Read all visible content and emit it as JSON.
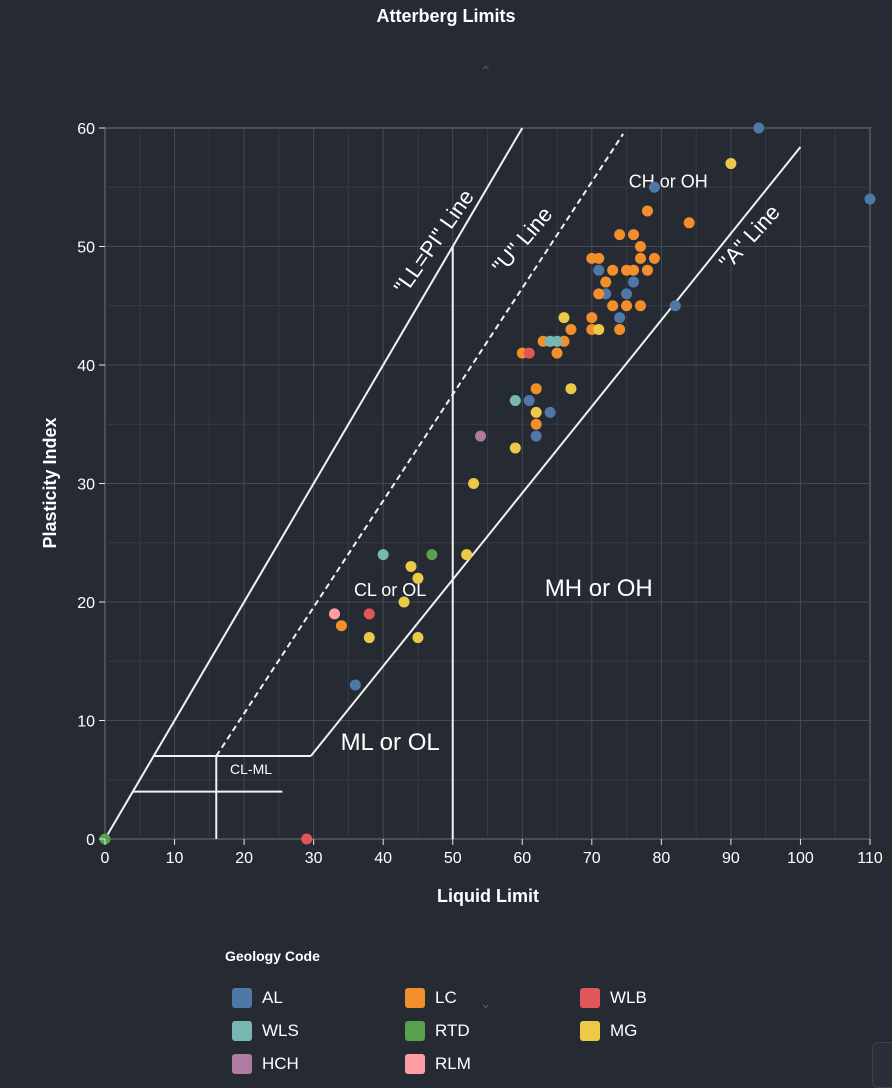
{
  "chart_data": {
    "type": "scatter",
    "title": "Atterberg Limits",
    "xlabel": "Liquid Limit",
    "ylabel": "Plasticity Index",
    "xlim": [
      0,
      110
    ],
    "ylim": [
      0,
      60
    ],
    "xticks": [
      0,
      10,
      20,
      30,
      40,
      50,
      60,
      70,
      80,
      90,
      100,
      110
    ],
    "yticks": [
      0,
      10,
      20,
      30,
      40,
      50,
      60
    ],
    "grid": true,
    "legend_title": "Geology Code",
    "legend_position": "bottom",
    "reference_lines": [
      {
        "name": "LL=PI line",
        "label": "\"LL=PI\" Line",
        "points": [
          [
            0,
            0
          ],
          [
            60,
            60
          ]
        ],
        "style": "solid"
      },
      {
        "name": "U line",
        "label": "\"U\" Line",
        "points": [
          [
            16,
            7
          ],
          [
            74.5,
            59.5
          ]
        ],
        "style": "dashed"
      },
      {
        "name": "A line",
        "label": "\"A\" Line",
        "points": [
          [
            29.6,
            7
          ],
          [
            100,
            58.4
          ]
        ],
        "style": "solid"
      },
      {
        "name": "LL 50 line",
        "label": "",
        "points": [
          [
            50,
            0
          ],
          [
            50,
            50
          ]
        ],
        "style": "solid"
      },
      {
        "name": "LL 16 line",
        "label": "",
        "points": [
          [
            16,
            0
          ],
          [
            16,
            7
          ]
        ],
        "style": "solid"
      },
      {
        "name": "PI 7 line",
        "label": "",
        "points": [
          [
            7,
            7
          ],
          [
            29.6,
            7
          ]
        ],
        "style": "solid"
      },
      {
        "name": "PI 4 line",
        "label": "",
        "points": [
          [
            4,
            4
          ],
          [
            25.5,
            4
          ]
        ],
        "style": "solid"
      }
    ],
    "regions": [
      {
        "label": "CH or OH",
        "x": 81,
        "y": 55
      },
      {
        "label": "CL or OL",
        "x": 41,
        "y": 20.5
      },
      {
        "label": "MH or OH",
        "x": 71,
        "y": 20.5
      },
      {
        "label": "ML or OL",
        "x": 41,
        "y": 7.5
      },
      {
        "label": "CL-ML",
        "x": 21,
        "y": 5.5
      }
    ],
    "series": [
      {
        "name": "AL",
        "color": "#4e79a7",
        "points": [
          [
            94,
            60
          ],
          [
            79,
            55
          ],
          [
            110,
            54
          ],
          [
            71,
            48
          ],
          [
            72,
            46
          ],
          [
            75,
            46
          ],
          [
            76,
            47
          ],
          [
            74,
            44
          ],
          [
            82,
            45
          ],
          [
            61,
            37
          ],
          [
            64,
            36
          ],
          [
            62,
            34
          ],
          [
            36,
            13
          ]
        ]
      },
      {
        "name": "LC",
        "color": "#f28e2b",
        "points": [
          [
            78,
            53
          ],
          [
            84,
            52
          ],
          [
            74,
            51
          ],
          [
            76,
            51
          ],
          [
            77,
            50
          ],
          [
            70,
            49
          ],
          [
            71,
            49
          ],
          [
            77,
            49
          ],
          [
            79,
            49
          ],
          [
            73,
            48
          ],
          [
            75,
            48
          ],
          [
            76,
            48
          ],
          [
            78,
            48
          ],
          [
            72,
            47
          ],
          [
            71,
            46
          ],
          [
            73,
            45
          ],
          [
            75,
            45
          ],
          [
            77,
            45
          ],
          [
            70,
            44
          ],
          [
            67,
            43
          ],
          [
            70,
            43
          ],
          [
            74,
            43
          ],
          [
            63,
            42
          ],
          [
            66,
            42
          ],
          [
            65,
            41
          ],
          [
            60,
            41
          ],
          [
            62,
            38
          ],
          [
            62,
            35
          ],
          [
            34,
            18
          ]
        ]
      },
      {
        "name": "WLB",
        "color": "#e15759",
        "points": [
          [
            61,
            41
          ],
          [
            38,
            19
          ],
          [
            29,
            0
          ]
        ]
      },
      {
        "name": "WLS",
        "color": "#76b7b2",
        "points": [
          [
            64,
            42
          ],
          [
            65,
            42
          ],
          [
            59,
            37
          ],
          [
            40,
            24
          ]
        ]
      },
      {
        "name": "RTD",
        "color": "#59a14f",
        "points": [
          [
            47,
            24
          ],
          [
            0,
            0
          ]
        ]
      },
      {
        "name": "MG",
        "color": "#edc948",
        "points": [
          [
            90,
            57
          ],
          [
            66,
            44
          ],
          [
            71,
            43
          ],
          [
            67,
            38
          ],
          [
            62,
            36
          ],
          [
            59,
            33
          ],
          [
            53,
            30
          ],
          [
            44,
            23
          ],
          [
            52,
            24
          ],
          [
            45,
            22
          ],
          [
            43,
            20
          ],
          [
            38,
            17
          ],
          [
            45,
            17
          ]
        ]
      },
      {
        "name": "HCH",
        "color": "#b07aa1",
        "points": [
          [
            54,
            34
          ]
        ]
      },
      {
        "name": "RLM",
        "color": "#ff9da7",
        "points": [
          [
            33,
            19
          ]
        ]
      }
    ]
  }
}
